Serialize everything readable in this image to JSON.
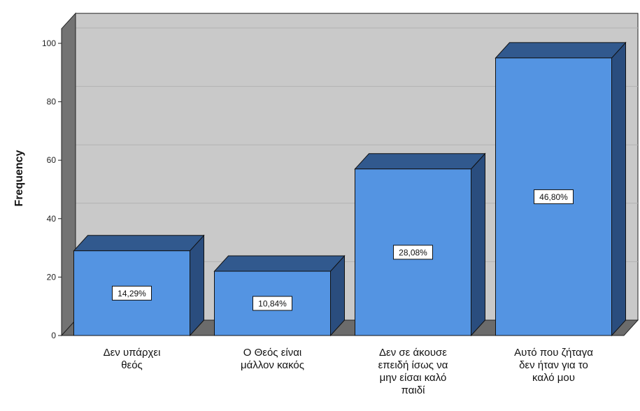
{
  "chart_data": {
    "type": "bar",
    "ylabel": "Frequency",
    "ylim": [
      0,
      105
    ],
    "yticks": [
      0,
      20,
      40,
      60,
      80,
      100
    ],
    "grid": true,
    "style": "3d",
    "categories": [
      [
        "Δεν υπάρχει",
        "θεός"
      ],
      [
        "Ο Θεός είναι",
        "μάλλον κακός"
      ],
      [
        "Δεν σε άκουσε",
        "επειδή ίσως να",
        "μην είσαι καλό",
        "παιδί"
      ],
      [
        "Αυτό που ζήταγα",
        "δεν ήταν για το",
        "καλό μου"
      ]
    ],
    "values": [
      29,
      22,
      57,
      95
    ],
    "data_labels": [
      "14,29%",
      "10,84%",
      "28,08%",
      "46,80%"
    ],
    "colors": {
      "bar_front": "#5494e2",
      "bar_top": "#31598e",
      "bar_side": "#2a4d7e",
      "wall": "#c9c9c9",
      "left_wall": "#737373",
      "floor": "#6b6b6b",
      "gridline": "#b2b2b2"
    }
  }
}
